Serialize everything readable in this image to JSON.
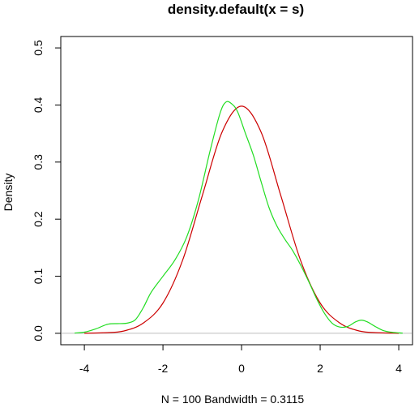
{
  "chart_data": {
    "type": "line",
    "title": "density.default(x = s)",
    "xlabel": "N = 100   Bandwidth = 0.3115",
    "ylabel": "Density",
    "xlim": [
      -4.6,
      4.35
    ],
    "ylim": [
      -0.02,
      0.52
    ],
    "x_ticks": [
      "-4",
      "-2",
      "0",
      "2",
      "4"
    ],
    "y_ticks": [
      "0.0",
      "0.1",
      "0.2",
      "0.3",
      "0.4",
      "0.5"
    ],
    "grid": false,
    "baseline": 0,
    "colors": {
      "baseline": "#bebebe",
      "red_series": "#cc0000",
      "green_series": "#22dd22"
    },
    "series": [
      {
        "color": "#cc0000",
        "x": [
          -4.0,
          -3.5,
          -3.0,
          -2.5,
          -2.0,
          -1.5,
          -1.0,
          -0.5,
          0.0,
          0.5,
          1.0,
          1.5,
          2.0,
          2.5,
          3.0,
          3.5,
          4.0
        ],
        "y": [
          0.0001,
          0.001,
          0.004,
          0.018,
          0.053,
          0.128,
          0.241,
          0.352,
          0.398,
          0.352,
          0.241,
          0.128,
          0.053,
          0.018,
          0.004,
          0.001,
          0.0001
        ]
      },
      {
        "color": "#22dd22",
        "x": [
          -4.25,
          -4.0,
          -3.7,
          -3.4,
          -3.1,
          -2.9,
          -2.7,
          -2.5,
          -2.3,
          -2.0,
          -1.7,
          -1.4,
          -1.1,
          -0.8,
          -0.55,
          -0.4,
          -0.25,
          -0.1,
          0.1,
          0.3,
          0.5,
          0.7,
          0.9,
          1.1,
          1.3,
          1.5,
          1.7,
          1.9,
          2.1,
          2.3,
          2.5,
          2.7,
          2.9,
          3.05,
          3.2,
          3.4,
          3.6,
          3.8,
          4.0,
          4.1
        ],
        "y": [
          0.0005,
          0.002,
          0.008,
          0.016,
          0.017,
          0.018,
          0.024,
          0.045,
          0.072,
          0.1,
          0.128,
          0.168,
          0.233,
          0.32,
          0.385,
          0.405,
          0.402,
          0.388,
          0.35,
          0.312,
          0.265,
          0.22,
          0.188,
          0.165,
          0.145,
          0.12,
          0.092,
          0.062,
          0.036,
          0.018,
          0.011,
          0.012,
          0.02,
          0.023,
          0.02,
          0.012,
          0.005,
          0.002,
          0.0008,
          0.0003
        ]
      }
    ]
  }
}
